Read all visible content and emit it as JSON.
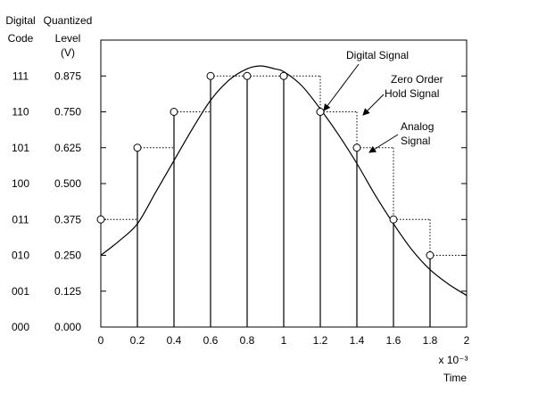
{
  "chart_data": {
    "type": "line",
    "headers": {
      "code": [
        "Digital",
        "Code"
      ],
      "level": [
        "Quantized",
        "Level",
        "(V)"
      ]
    },
    "y_codes": [
      "000",
      "001",
      "010",
      "011",
      "100",
      "101",
      "110",
      "111"
    ],
    "y_levels": [
      "0.000",
      "0.125",
      "0.250",
      "0.375",
      "0.500",
      "0.625",
      "0.750",
      "0.875"
    ],
    "y_values": [
      0,
      0.125,
      0.25,
      0.375,
      0.5,
      0.625,
      0.75,
      0.875
    ],
    "x_ticks": [
      0,
      0.2,
      0.4,
      0.6,
      0.8,
      1,
      1.2,
      1.4,
      1.6,
      1.8,
      2
    ],
    "x_tick_labels": [
      "0",
      "0.2",
      "0.4",
      "0.6",
      "0.8",
      "1",
      "1.2",
      "1.4",
      "1.6",
      "1.8",
      "2"
    ],
    "xlabel_scale": "x 10⁻³",
    "xlabel": "Time",
    "xlim": [
      0,
      2
    ],
    "ylim": [
      0,
      1
    ],
    "series": [
      {
        "name": "Digital Signal",
        "x": [
          0,
          0.2,
          0.4,
          0.6,
          0.8,
          1.0,
          1.2,
          1.4,
          1.6,
          1.8
        ],
        "y": [
          0.375,
          0.625,
          0.75,
          0.875,
          0.875,
          0.875,
          0.75,
          0.625,
          0.375,
          0.25
        ]
      },
      {
        "name": "Analog Signal",
        "x": [
          0,
          0.1,
          0.2,
          0.3,
          0.4,
          0.5,
          0.6,
          0.7,
          0.8,
          0.875,
          0.95,
          1.0,
          1.1,
          1.2,
          1.3,
          1.4,
          1.5,
          1.6,
          1.7,
          1.8,
          1.9,
          2.0
        ],
        "y": [
          0.25,
          0.3,
          0.36,
          0.47,
          0.58,
          0.69,
          0.79,
          0.86,
          0.9,
          0.91,
          0.9,
          0.89,
          0.84,
          0.76,
          0.67,
          0.57,
          0.46,
          0.36,
          0.27,
          0.2,
          0.15,
          0.11
        ]
      }
    ],
    "annotations": {
      "digital": "Digital Signal",
      "zoh": [
        "Zero Order",
        "Hold Signal"
      ],
      "analog": [
        "Analog",
        "Signal"
      ]
    },
    "grid": false
  }
}
